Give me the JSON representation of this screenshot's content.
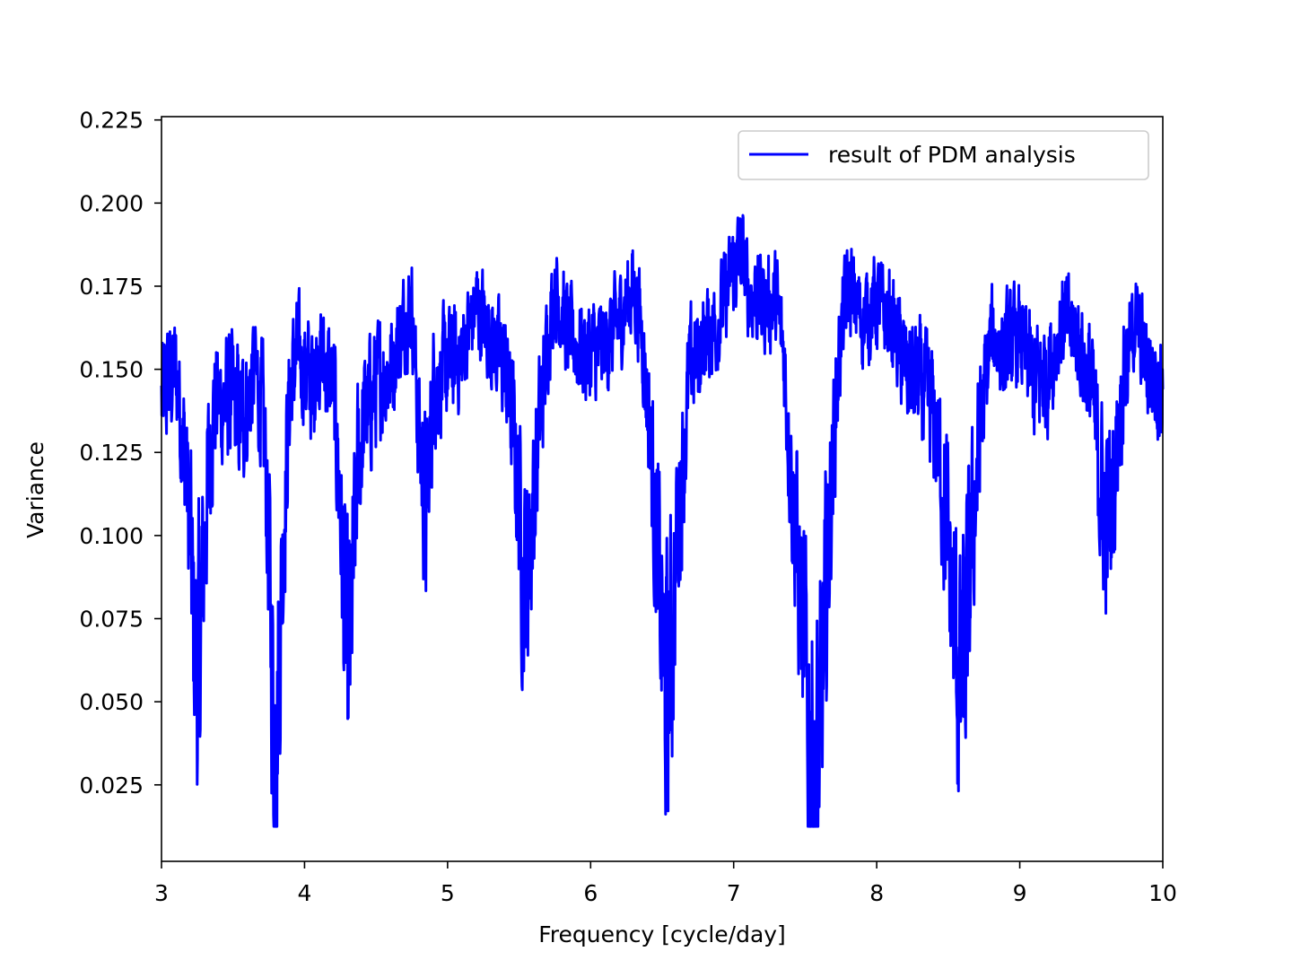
{
  "chart_data": {
    "type": "line",
    "title": "",
    "xlabel": "Frequency [cycle/day]",
    "ylabel": "Variance",
    "xlim": [
      3,
      10
    ],
    "ylim": [
      0.002,
      0.226
    ],
    "xticks": [
      3,
      4,
      5,
      6,
      7,
      8,
      9,
      10
    ],
    "xtick_labels": [
      "3",
      "4",
      "5",
      "6",
      "7",
      "8",
      "9",
      "10"
    ],
    "yticks": [
      0.025,
      0.05,
      0.075,
      0.1,
      0.125,
      0.15,
      0.175,
      0.2,
      0.225
    ],
    "ytick_labels": [
      "0.025",
      "0.050",
      "0.075",
      "0.100",
      "0.125",
      "0.150",
      "0.175",
      "0.200",
      "0.225"
    ],
    "grid": false,
    "legend_position": "top-right",
    "series": [
      {
        "name": "result of PDM analysis",
        "color": "#0000ff",
        "sampling": "noisy",
        "x": [
          3.0,
          3.05,
          3.1,
          3.15,
          3.2,
          3.22,
          3.25,
          3.28,
          3.32,
          3.37,
          3.42,
          3.5,
          3.55,
          3.6,
          3.65,
          3.7,
          3.74,
          3.77,
          3.79,
          3.82,
          3.86,
          3.9,
          3.95,
          4.0,
          4.05,
          4.1,
          4.15,
          4.2,
          4.25,
          4.28,
          4.3,
          4.33,
          4.37,
          4.42,
          4.5,
          4.6,
          4.7,
          4.75,
          4.8,
          4.85,
          4.9,
          5.0,
          5.1,
          5.2,
          5.3,
          5.4,
          5.45,
          5.5,
          5.53,
          5.57,
          5.62,
          5.7,
          5.75,
          5.85,
          5.95,
          6.05,
          6.15,
          6.25,
          6.3,
          6.35,
          6.4,
          6.45,
          6.5,
          6.53,
          6.57,
          6.62,
          6.7,
          6.8,
          6.9,
          7.0,
          7.05,
          7.1,
          7.2,
          7.3,
          7.35,
          7.4,
          7.45,
          7.5,
          7.55,
          7.57,
          7.6,
          7.65,
          7.7,
          7.75,
          7.8,
          7.85,
          7.9,
          8.0,
          8.1,
          8.2,
          8.3,
          8.35,
          8.4,
          8.45,
          8.5,
          8.55,
          8.58,
          8.62,
          8.67,
          8.72,
          8.8,
          8.9,
          9.0,
          9.1,
          9.2,
          9.3,
          9.4,
          9.5,
          9.55,
          9.6,
          9.65,
          9.7,
          9.8,
          9.9,
          10.0
        ],
        "y": [
          0.14,
          0.145,
          0.15,
          0.13,
          0.1,
          0.075,
          0.06,
          0.075,
          0.115,
          0.14,
          0.14,
          0.14,
          0.135,
          0.14,
          0.15,
          0.14,
          0.11,
          0.065,
          0.035,
          0.06,
          0.11,
          0.145,
          0.155,
          0.15,
          0.145,
          0.155,
          0.15,
          0.145,
          0.11,
          0.075,
          0.055,
          0.075,
          0.12,
          0.135,
          0.145,
          0.15,
          0.165,
          0.17,
          0.13,
          0.105,
          0.145,
          0.15,
          0.155,
          0.17,
          0.16,
          0.15,
          0.135,
          0.11,
          0.085,
          0.095,
          0.12,
          0.16,
          0.175,
          0.16,
          0.155,
          0.155,
          0.16,
          0.17,
          0.175,
          0.165,
          0.14,
          0.105,
          0.07,
          0.05,
          0.07,
          0.11,
          0.15,
          0.16,
          0.165,
          0.18,
          0.185,
          0.175,
          0.17,
          0.17,
          0.155,
          0.12,
          0.09,
          0.06,
          0.03,
          0.02,
          0.035,
          0.085,
          0.13,
          0.16,
          0.175,
          0.17,
          0.165,
          0.17,
          0.165,
          0.15,
          0.145,
          0.14,
          0.135,
          0.12,
          0.095,
          0.07,
          0.05,
          0.065,
          0.1,
          0.13,
          0.16,
          0.155,
          0.16,
          0.145,
          0.15,
          0.165,
          0.16,
          0.145,
          0.12,
          0.105,
          0.11,
          0.14,
          0.165,
          0.15,
          0.145
        ]
      }
    ]
  }
}
